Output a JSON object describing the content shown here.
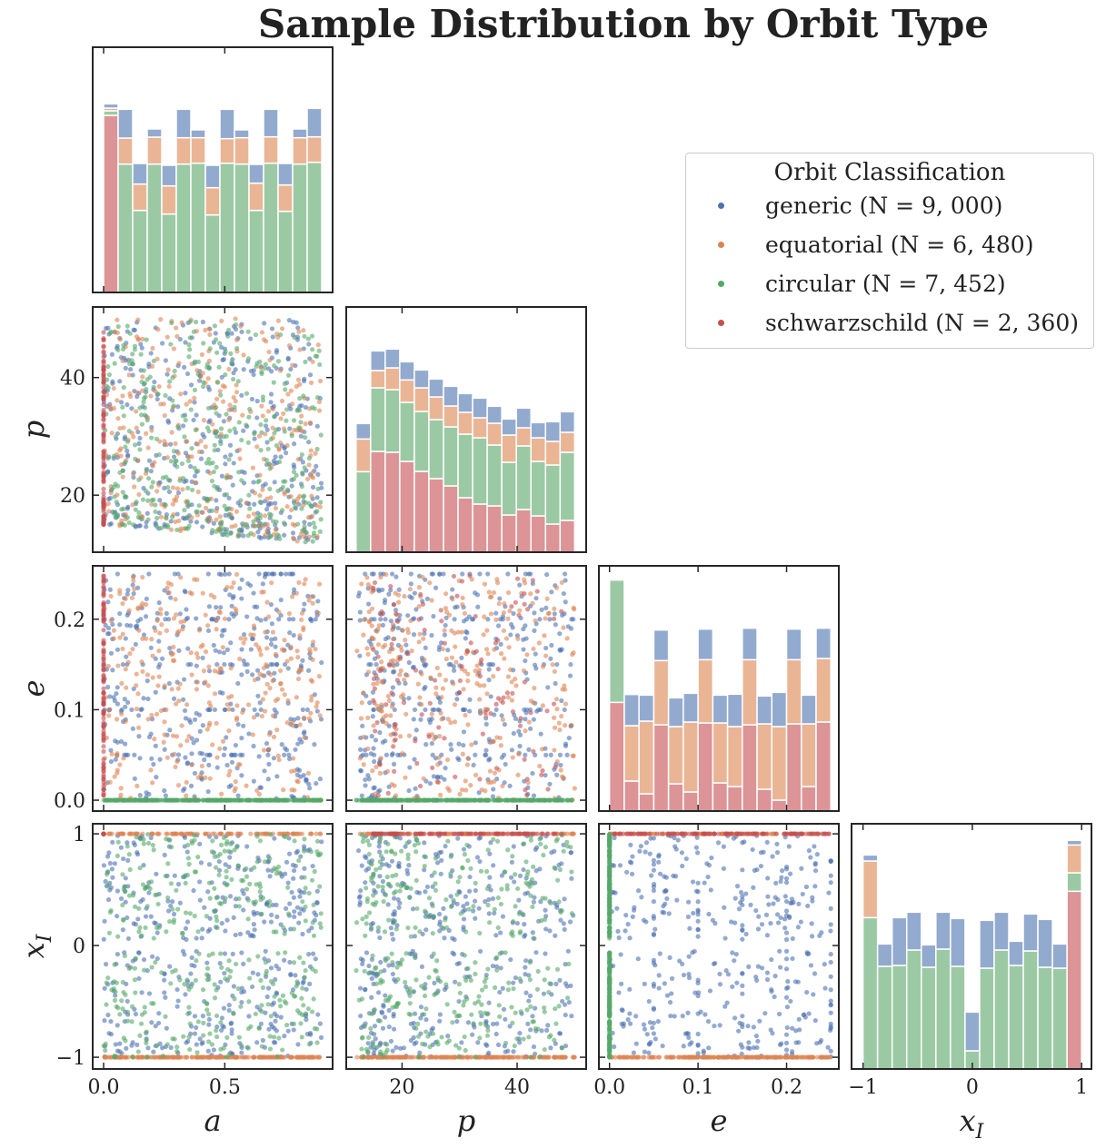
{
  "title": "Sample Distribution by Orbit Type",
  "legend": {
    "title": "Orbit Classification",
    "items": [
      {
        "name": "generic",
        "count_text": "(N = 9, 000)",
        "color": "#4c72b0"
      },
      {
        "name": "equatorial",
        "count_text": "(N = 6, 480)",
        "color": "#dd8452"
      },
      {
        "name": "circular",
        "count_text": "(N = 7, 452)",
        "color": "#55a868"
      },
      {
        "name": "schwarzschild",
        "count_text": "(N = 2, 360)",
        "color": "#c44e52"
      }
    ]
  },
  "chart_data": {
    "type": "pairplot",
    "variables": [
      "a",
      "p",
      "e",
      "x_I"
    ],
    "axis_labels": {
      "a": "a",
      "p": "p",
      "e": "e",
      "x_I": "x"
    },
    "axis_label_subscripts": {
      "x_I": "I"
    },
    "ranges": {
      "a": [
        -0.045,
        0.945
      ],
      "p": [
        10.3,
        52
      ],
      "e": [
        -0.012,
        0.259
      ],
      "x_I": [
        -1.105,
        1.09
      ]
    },
    "ticks": {
      "a": {
        "values": [
          0,
          0.5
        ],
        "labels": [
          "0.0",
          "0.5"
        ]
      },
      "p": {
        "values": [
          20,
          40
        ],
        "labels": [
          "20",
          "40"
        ]
      },
      "e": {
        "values": [
          0,
          0.1,
          0.2
        ],
        "labels": [
          "0.0",
          "0.1",
          "0.2"
        ]
      },
      "x_I": {
        "values": [
          -1,
          0,
          1
        ],
        "labels": [
          "−1",
          "0",
          "1"
        ]
      }
    },
    "classes": [
      "schwarzschild",
      "circular",
      "equatorial",
      "generic"
    ],
    "scatter_colors": {
      "generic": "#4c72b0",
      "equatorial": "#dd8452",
      "circular": "#55a868",
      "schwarzschild": "#c44e52"
    },
    "hist_colors": {
      "generic": "#93aacf",
      "equatorial": "#eab595",
      "circular": "#9bc9a3",
      "schwarzschild": "#dc9497"
    },
    "scatter_distribution": {
      "generic": {
        "a": [
          0,
          0.9
        ],
        "p": [
          12,
          50
        ],
        "e": [
          0,
          0.25
        ],
        "x_I": "[-1,-0.05] and [0.05,1]"
      },
      "equatorial": {
        "a": [
          0,
          0.9
        ],
        "p": [
          12,
          50
        ],
        "e": [
          0,
          0.25
        ],
        "x_I": "-1 or 1"
      },
      "circular": {
        "a": [
          0,
          0.9
        ],
        "p": [
          12,
          50
        ],
        "e": 0,
        "x_I": "[-1,-0.05] and [0.05,1]"
      },
      "schwarzschild": {
        "a": 0,
        "p": [
          15,
          50
        ],
        "e": [
          0,
          0.25
        ],
        "x_I": 1
      }
    },
    "histograms": {
      "a": {
        "bins": [
          0,
          0.9
        ],
        "nbins": 15,
        "schwarzschild": [
          585,
          0,
          0,
          0,
          0,
          0,
          0,
          0,
          0,
          0,
          0,
          0,
          0,
          0,
          0
        ],
        "circular": [
          15,
          424,
          271,
          424,
          259,
          424,
          427,
          256,
          427,
          424,
          271,
          427,
          268,
          424,
          430
        ],
        "equatorial": [
          9,
          86,
          87,
          89,
          93,
          87,
          84,
          90,
          81,
          87,
          90,
          87,
          87,
          87,
          84
        ],
        "generic": [
          14,
          95,
          68,
          27,
          68,
          94,
          26,
          74,
          97,
          26,
          62,
          91,
          71,
          29,
          94
        ]
      },
      "p": {
        "bins": [
          12,
          50
        ],
        "nbins": 15,
        "schwarzschild": [
          0,
          333,
          330,
          300,
          267,
          243,
          219,
          180,
          159,
          153,
          123,
          141,
          120,
          93,
          105
        ],
        "circular": [
          266,
          210,
          207,
          195,
          198,
          195,
          195,
          210,
          219,
          201,
          174,
          210,
          180,
          195,
          225
        ],
        "equatorial": [
          108,
          57,
          72,
          74,
          78,
          75,
          69,
          72,
          66,
          72,
          90,
          60,
          78,
          78,
          66
        ],
        "generic": [
          51,
          65,
          62,
          60,
          59,
          59,
          65,
          62,
          65,
          56,
          53,
          65,
          50,
          65,
          68
        ]
      },
      "e": {
        "bins": [
          0,
          0.25
        ],
        "nbins": 15,
        "schwarzschild": [
          359,
          99,
          57,
          285,
          90,
          63,
          291,
          93,
          81,
          285,
          72,
          36,
          288,
          81,
          294
        ],
        "circular": [
          404,
          0,
          0,
          0,
          0,
          0,
          0,
          0,
          0,
          0,
          0,
          0,
          0,
          0,
          0
        ],
        "equatorial": [
          0,
          183,
          240,
          212,
          189,
          231,
          209,
          198,
          198,
          215,
          216,
          243,
          212,
          207,
          210
        ],
        "generic": [
          0,
          103,
          86,
          101,
          95,
          95,
          101,
          92,
          107,
          104,
          92,
          113,
          101,
          95,
          100
        ]
      },
      "x_I": {
        "bins": [
          -1,
          1
        ],
        "nbins": 15,
        "schwarzschild": [
          0,
          0,
          0,
          0,
          0,
          0,
          0,
          0,
          0,
          0,
          0,
          0,
          0,
          0,
          587
        ],
        "circular": [
          500,
          339,
          342,
          393,
          336,
          396,
          339,
          60,
          333,
          393,
          342,
          390,
          336,
          333,
          61
        ],
        "equatorial": [
          187,
          0,
          0,
          0,
          0,
          0,
          0,
          0,
          0,
          0,
          0,
          0,
          0,
          0,
          92
        ],
        "generic": [
          20,
          74,
          158,
          125,
          74,
          122,
          158,
          128,
          158,
          125,
          80,
          122,
          158,
          80,
          15
        ]
      }
    },
    "grid": false
  }
}
